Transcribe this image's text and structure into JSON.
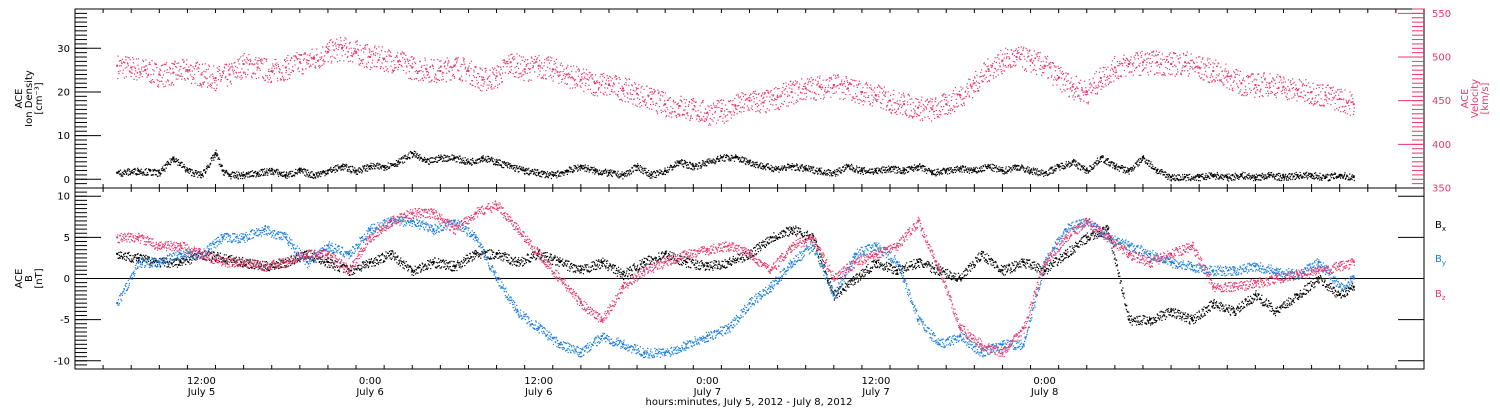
{
  "colors": {
    "black": "#000000",
    "pink": "#e8386a",
    "blue": "#1a7ee0"
  },
  "chart_data": [
    {
      "type": "scatter",
      "ylabel": [
        "ACE",
        "Ion Density",
        "[cm⁻³]"
      ],
      "ylabel_right": [
        "ACE",
        "Velocity",
        "[km/s]"
      ],
      "ylim": [
        -2,
        39
      ],
      "yticks": [
        0,
        10,
        20,
        30
      ],
      "ylim_right": [
        350,
        555
      ],
      "yticks_right": [
        350,
        400,
        450,
        500,
        550
      ],
      "series": [
        {
          "name": "",
          "axis": "left",
          "color": "#000000",
          "x": [
            0,
            3,
            6,
            8,
            10,
            12,
            14,
            15,
            16,
            18,
            20,
            22,
            24,
            26,
            28,
            30,
            32,
            34,
            36,
            38,
            40,
            42,
            44,
            46,
            48,
            50,
            52,
            54,
            56,
            58,
            60,
            62,
            64,
            66,
            68,
            70,
            72,
            74,
            76,
            78,
            80,
            82,
            84,
            86,
            88,
            90,
            92,
            94,
            96,
            98,
            100,
            102,
            104,
            106,
            108,
            110,
            112,
            114,
            116,
            118,
            120,
            122,
            124,
            126,
            128,
            130,
            132,
            134,
            136,
            138,
            140,
            142,
            144,
            146,
            148,
            150,
            152,
            154,
            156,
            158,
            160,
            162,
            164,
            166,
            168,
            170,
            172,
            174,
            176
          ],
          "y": [
            1.5,
            2,
            1.5,
            5,
            2,
            1,
            6,
            2,
            1,
            1,
            1.5,
            2,
            1,
            2,
            1,
            2,
            3,
            2,
            3,
            3,
            4,
            6,
            4,
            5,
            5,
            4,
            5,
            4,
            3,
            2,
            1.5,
            1,
            2,
            3,
            2,
            1.5,
            1,
            3,
            1,
            2,
            4,
            3,
            4,
            5,
            5,
            4,
            3,
            2.5,
            3,
            2.5,
            2,
            1.5,
            3,
            2,
            2,
            2.5,
            2,
            3,
            1.5,
            2,
            2.5,
            2,
            3,
            2,
            3,
            2,
            1.5,
            3,
            4,
            2,
            5,
            3,
            2,
            5,
            2,
            0.5,
            0.5,
            0.5,
            1,
            0.5,
            1,
            0.5,
            1,
            0.5,
            1,
            1,
            0.5,
            1,
            0.5
          ]
        },
        {
          "name": "",
          "axis": "right",
          "color": "#e8386a",
          "x": [
            0,
            2,
            4,
            6,
            8,
            10,
            12,
            14,
            16,
            18,
            20,
            22,
            24,
            26,
            28,
            30,
            32,
            34,
            36,
            38,
            40,
            42,
            44,
            46,
            48,
            50,
            52,
            54,
            56,
            58,
            60,
            62,
            64,
            66,
            68,
            70,
            72,
            74,
            76,
            78,
            80,
            82,
            84,
            86,
            88,
            90,
            92,
            94,
            96,
            98,
            100,
            102,
            104,
            106,
            108,
            110,
            112,
            114,
            116,
            118,
            120,
            122,
            124,
            126,
            128,
            130,
            132,
            134,
            136,
            138,
            140,
            142,
            144,
            146,
            148,
            150,
            152,
            154,
            156,
            158,
            160,
            162,
            164,
            166,
            168,
            170,
            172,
            174,
            176
          ],
          "y": [
            490,
            488,
            485,
            480,
            482,
            485,
            480,
            476,
            480,
            492,
            488,
            484,
            488,
            494,
            498,
            506,
            510,
            506,
            500,
            498,
            495,
            488,
            486,
            484,
            490,
            484,
            474,
            478,
            494,
            486,
            490,
            486,
            480,
            474,
            470,
            468,
            464,
            458,
            452,
            446,
            444,
            440,
            436,
            438,
            444,
            450,
            448,
            454,
            460,
            464,
            466,
            468,
            464,
            460,
            456,
            450,
            446,
            442,
            440,
            446,
            456,
            470,
            486,
            496,
            500,
            496,
            490,
            476,
            466,
            460,
            476,
            488,
            492,
            494,
            494,
            492,
            494,
            488,
            484,
            478,
            470,
            468,
            470,
            466,
            462,
            460,
            456,
            452,
            446
          ]
        }
      ]
    },
    {
      "type": "scatter",
      "ylabel": [
        "ACE",
        "B",
        "[nT]"
      ],
      "ylim": [
        -11,
        11
      ],
      "yticks": [
        -10,
        -5,
        0,
        5,
        10
      ],
      "series": [
        {
          "name": "Bx",
          "color": "#000000",
          "x": [
            0,
            3,
            6,
            9,
            12,
            15,
            18,
            21,
            24,
            27,
            30,
            33,
            36,
            39,
            42,
            45,
            48,
            51,
            54,
            57,
            60,
            63,
            66,
            69,
            72,
            75,
            78,
            81,
            84,
            87,
            90,
            93,
            96,
            99,
            102,
            105,
            108,
            111,
            114,
            117,
            120,
            123,
            126,
            129,
            132,
            135,
            138,
            141,
            144,
            147,
            150,
            153,
            156,
            159,
            162,
            165,
            168,
            171,
            174,
            176
          ],
          "y": [
            3,
            2.5,
            2,
            2,
            3,
            2.5,
            2,
            1.5,
            2,
            3,
            2,
            1,
            2,
            3,
            1,
            2,
            1.5,
            3,
            3,
            2,
            3,
            2,
            1,
            2,
            0.5,
            2,
            3,
            2,
            1.5,
            2,
            3,
            5,
            6,
            5,
            -2,
            0,
            2,
            1,
            2,
            1,
            0,
            3,
            1,
            2,
            1,
            3,
            5,
            6,
            -5,
            -5,
            -4,
            -5,
            -3,
            -4,
            -2,
            -4,
            -2,
            0,
            -2,
            -1
          ]
        },
        {
          "name": "By",
          "color": "#1a7ee0",
          "x": [
            0,
            3,
            6,
            9,
            12,
            15,
            18,
            21,
            24,
            27,
            30,
            33,
            36,
            39,
            42,
            45,
            48,
            51,
            54,
            57,
            60,
            63,
            66,
            69,
            72,
            75,
            78,
            81,
            84,
            87,
            90,
            93,
            96,
            99,
            102,
            105,
            108,
            111,
            114,
            117,
            120,
            123,
            126,
            129,
            132,
            135,
            138,
            141,
            144,
            147,
            150,
            153,
            156,
            159,
            162,
            165,
            168,
            171,
            174,
            176
          ],
          "y": [
            -3,
            2,
            2,
            3,
            3,
            5,
            5,
            6,
            5,
            2,
            4,
            3,
            6,
            7,
            7,
            6,
            7,
            5,
            0,
            -4,
            -6,
            -8,
            -9,
            -7,
            -8,
            -9,
            -9,
            -8,
            -7,
            -6,
            -3,
            -1,
            2,
            4,
            -2,
            3,
            4,
            2,
            -5,
            -8,
            -7,
            -9,
            -8,
            -8,
            2,
            6,
            7,
            5,
            4,
            3,
            2,
            1.5,
            1,
            1,
            1.5,
            1,
            0.5,
            2,
            -1,
            0
          ]
        },
        {
          "name": "Bz",
          "color": "#e8386a",
          "x": [
            0,
            3,
            6,
            9,
            12,
            15,
            18,
            21,
            24,
            27,
            30,
            33,
            36,
            39,
            42,
            45,
            48,
            51,
            54,
            57,
            60,
            63,
            66,
            69,
            72,
            75,
            78,
            81,
            84,
            87,
            90,
            93,
            96,
            99,
            102,
            105,
            108,
            111,
            114,
            117,
            120,
            123,
            126,
            129,
            132,
            135,
            138,
            141,
            144,
            147,
            150,
            153,
            156,
            159,
            162,
            165,
            168,
            171,
            174,
            176
          ],
          "y": [
            5,
            5,
            4,
            4,
            3,
            2,
            2,
            1.5,
            2,
            3,
            3,
            1,
            5,
            7,
            8,
            8,
            6,
            8,
            9,
            6,
            3,
            0,
            -3,
            -5,
            -1,
            1,
            2,
            3,
            3.5,
            4,
            3,
            1,
            4,
            5,
            0,
            2,
            3,
            4,
            7,
            1,
            -6,
            -8,
            -9,
            -6,
            2,
            5,
            7,
            5,
            3,
            2,
            3,
            4,
            -1,
            -1,
            -0.5,
            0,
            0.5,
            1,
            1.5,
            2
          ]
        }
      ]
    }
  ],
  "x_axis": {
    "range": [
      -6,
      186
    ],
    "ticks": [
      {
        "x": 12,
        "time": "12:00",
        "date": "July 5"
      },
      {
        "x": 36,
        "time": "0:00",
        "date": "July 6"
      },
      {
        "x": 60,
        "time": "12:00",
        "date": "July 6"
      },
      {
        "x": 84,
        "time": "0:00",
        "date": "July 7"
      },
      {
        "x": 108,
        "time": "12:00",
        "date": "July 7"
      },
      {
        "x": 132,
        "time": "0:00",
        "date": "July 8"
      }
    ],
    "label": "hours:minutes, July  5, 2012 - July  8, 2012"
  }
}
